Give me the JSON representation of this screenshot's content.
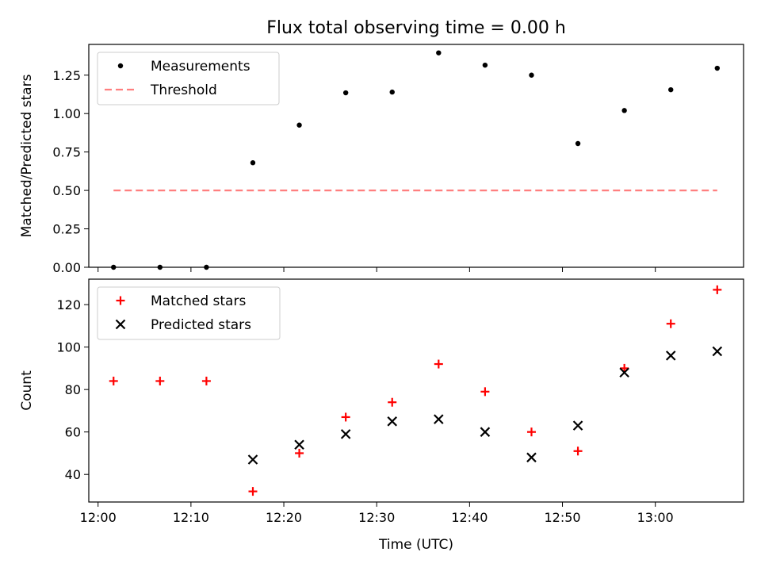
{
  "title": "Flux total observing time = 0.00 h",
  "xlabel": "Time (UTC)",
  "colors": {
    "threshold": "#ff7f7f",
    "matched": "#ff0000",
    "predicted": "#000000",
    "measurement": "#000000"
  },
  "chart_data": [
    {
      "type": "scatter",
      "panel": "top",
      "ylabel": "Matched/Predicted stars",
      "xlim": [
        "11:59:00",
        "13:09:30"
      ],
      "ylim": [
        0,
        1.45
      ],
      "x_ticks": [
        "12:00",
        "12:10",
        "12:20",
        "12:30",
        "12:40",
        "12:50",
        "13:00"
      ],
      "y_ticks": [
        "0.00",
        "0.25",
        "0.50",
        "0.75",
        "1.00",
        "1.25"
      ],
      "y_tick_values": [
        0,
        0.25,
        0.5,
        0.75,
        1.0,
        1.25
      ],
      "legend_position": "top-left",
      "series": [
        {
          "name": "Measurements",
          "marker": "dot",
          "x": [
            "12:01:40",
            "12:06:40",
            "12:11:40",
            "12:16:40",
            "12:21:40",
            "12:26:40",
            "12:31:40",
            "12:36:40",
            "12:41:40",
            "12:46:40",
            "12:51:40",
            "12:56:40",
            "13:01:40",
            "13:06:40"
          ],
          "y": [
            0.0,
            0.0,
            0.0,
            0.68,
            0.925,
            1.135,
            1.14,
            1.395,
            1.315,
            1.25,
            0.805,
            1.02,
            1.155,
            1.295
          ]
        },
        {
          "name": "Threshold",
          "marker": "dashed-line",
          "x": [
            "12:01:40",
            "13:06:40"
          ],
          "y": [
            0.5,
            0.5
          ]
        }
      ]
    },
    {
      "type": "scatter",
      "panel": "bottom",
      "ylabel": "Count",
      "xlabel": "Time (UTC)",
      "xlim": [
        "11:59:00",
        "13:09:30"
      ],
      "ylim": [
        27,
        132
      ],
      "x_ticks": [
        "12:00",
        "12:10",
        "12:20",
        "12:30",
        "12:40",
        "12:50",
        "13:00"
      ],
      "y_ticks": [
        "40",
        "60",
        "80",
        "100",
        "120"
      ],
      "y_tick_values": [
        40,
        60,
        80,
        100,
        120
      ],
      "legend_position": "top-left",
      "series": [
        {
          "name": "Matched stars",
          "marker": "plus",
          "x": [
            "12:01:40",
            "12:06:40",
            "12:11:40",
            "12:16:40",
            "12:21:40",
            "12:26:40",
            "12:31:40",
            "12:36:40",
            "12:41:40",
            "12:46:40",
            "12:51:40",
            "12:56:40",
            "13:01:40",
            "13:06:40"
          ],
          "y": [
            84,
            84,
            84,
            32,
            50,
            67,
            74,
            92,
            79,
            60,
            51,
            90,
            111,
            127
          ]
        },
        {
          "name": "Predicted stars",
          "marker": "x",
          "x": [
            "12:16:40",
            "12:21:40",
            "12:26:40",
            "12:31:40",
            "12:36:40",
            "12:41:40",
            "12:46:40",
            "12:51:40",
            "12:56:40",
            "13:01:40",
            "13:06:40"
          ],
          "y": [
            47,
            54,
            59,
            65,
            66,
            60,
            48,
            63,
            88,
            96,
            98
          ]
        }
      ]
    }
  ]
}
